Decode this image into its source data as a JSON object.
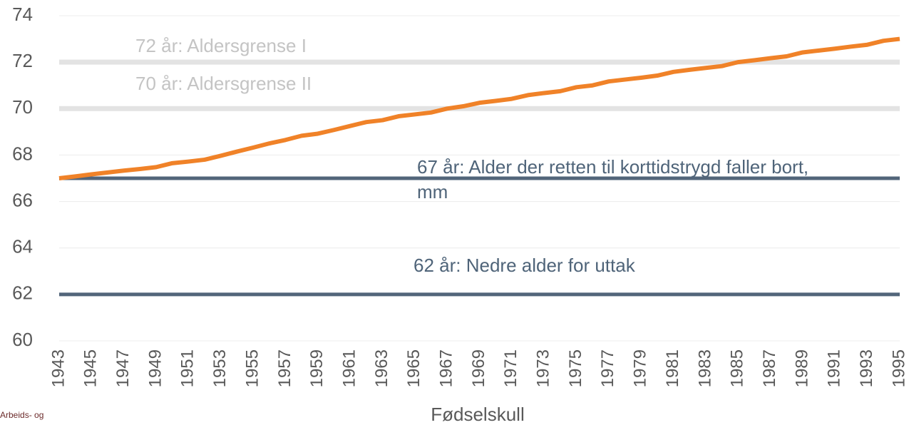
{
  "chart_data": {
    "type": "line",
    "x_label": "Fødselskull",
    "x": [
      1943,
      1944,
      1945,
      1946,
      1947,
      1948,
      1949,
      1950,
      1951,
      1952,
      1953,
      1954,
      1955,
      1956,
      1957,
      1958,
      1959,
      1960,
      1961,
      1962,
      1963,
      1964,
      1965,
      1966,
      1967,
      1968,
      1969,
      1970,
      1971,
      1972,
      1973,
      1974,
      1975,
      1976,
      1977,
      1978,
      1979,
      1980,
      1981,
      1982,
      1983,
      1984,
      1985,
      1986,
      1987,
      1988,
      1989,
      1990,
      1991,
      1992,
      1993,
      1994,
      1995
    ],
    "series": [
      {
        "color": "#f08228",
        "values": [
          67.0,
          67.08,
          67.17,
          67.25,
          67.33,
          67.4,
          67.48,
          67.65,
          67.72,
          67.8,
          67.97,
          68.15,
          68.32,
          68.5,
          68.65,
          68.83,
          68.92,
          69.08,
          69.25,
          69.42,
          69.5,
          69.67,
          69.75,
          69.83,
          70.0,
          70.1,
          70.25,
          70.33,
          70.42,
          70.58,
          70.67,
          70.75,
          70.92,
          71.0,
          71.17,
          71.25,
          71.33,
          71.42,
          71.58,
          71.67,
          71.75,
          71.83,
          72.0,
          72.08,
          72.17,
          72.25,
          72.42,
          72.5,
          72.58,
          72.67,
          72.75,
          72.92,
          73.0
        ]
      }
    ],
    "reference_lines": [
      {
        "value": 72,
        "label": "72 år: Aldersgrense I",
        "color": "#e3e3e3",
        "label_color": "#c4c4c4"
      },
      {
        "value": 70,
        "label": "70 år: Aldersgrense II",
        "color": "#e3e3e3",
        "label_color": "#c4c4c4"
      },
      {
        "value": 67,
        "label": "67 år: Alder der retten til korttidstrygd faller bort, mm",
        "color": "#52657a",
        "label_color": "#4f6479"
      },
      {
        "value": 62,
        "label": "62 år: Nedre alder for uttak",
        "color": "#52657a",
        "label_color": "#4f6479"
      }
    ],
    "xlim": [
      1943,
      1995
    ],
    "xticks": [
      1943,
      1945,
      1947,
      1949,
      1951,
      1953,
      1955,
      1957,
      1959,
      1961,
      1963,
      1965,
      1967,
      1969,
      1971,
      1973,
      1975,
      1977,
      1979,
      1981,
      1983,
      1985,
      1987,
      1989,
      1991,
      1993,
      1995
    ],
    "ylim": [
      60,
      74
    ],
    "yticks": [
      60,
      62,
      64,
      66,
      68,
      70,
      72,
      74
    ],
    "grid": true,
    "footer": "Arbeids- og"
  }
}
